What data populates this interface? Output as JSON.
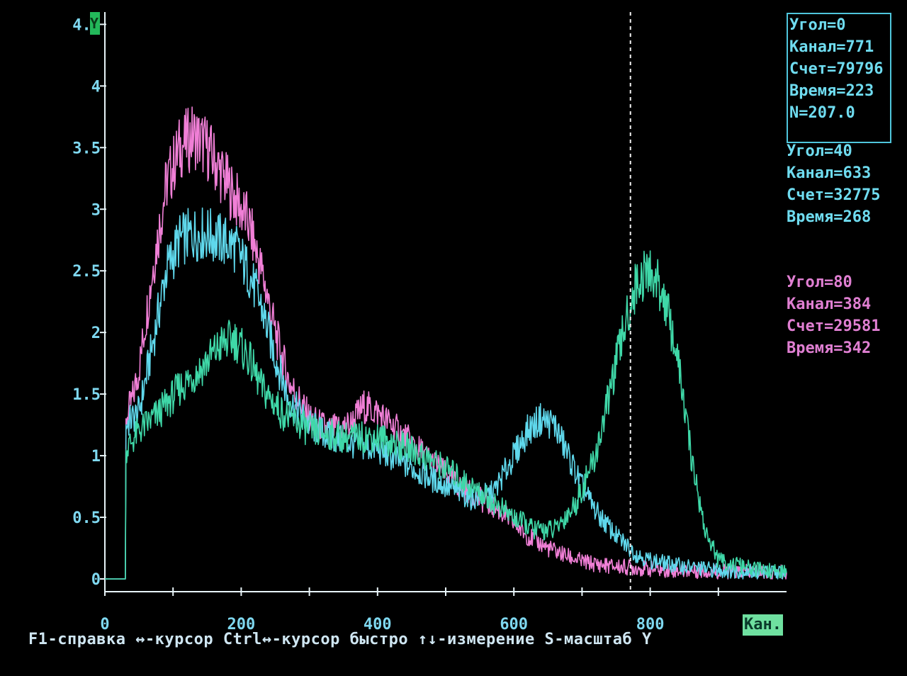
{
  "chart_data": {
    "type": "line",
    "title": "",
    "xlabel": "Кан.",
    "ylabel": "",
    "xlim": [
      0,
      1000
    ],
    "ylim": [
      0,
      4.6
    ],
    "x_ticks": [
      "0",
      "200",
      "400",
      "600",
      "800"
    ],
    "x_tick_values": [
      0,
      200,
      400,
      600,
      800
    ],
    "y_ticks": [
      "0",
      "0.5",
      "1",
      "1.5",
      "2",
      "2.5",
      "3",
      "3.5",
      "4",
      "4.5"
    ],
    "y_tick_values": [
      0,
      0.5,
      1,
      1.5,
      2,
      2.5,
      3,
      3.5,
      4,
      4.5
    ],
    "cursor_channel": 771,
    "grid": false,
    "series": [
      {
        "color": "#f07fd6",
        "x": [
          0,
          30,
          31,
          40,
          50,
          70,
          90,
          110,
          130,
          150,
          170,
          190,
          210,
          230,
          250,
          270,
          300,
          330,
          360,
          380,
          400,
          420,
          450,
          480,
          500,
          520,
          550,
          580,
          600,
          620,
          650,
          680,
          700,
          720,
          750,
          780,
          800,
          850,
          900,
          1000
        ],
        "y": [
          0,
          0,
          1.3,
          1.45,
          1.7,
          2.5,
          3.2,
          3.5,
          3.6,
          3.5,
          3.3,
          3.1,
          2.9,
          2.5,
          2.0,
          1.6,
          1.3,
          1.2,
          1.25,
          1.4,
          1.35,
          1.25,
          1.1,
          0.95,
          0.85,
          0.75,
          0.65,
          0.55,
          0.45,
          0.35,
          0.25,
          0.18,
          0.14,
          0.12,
          0.1,
          0.09,
          0.08,
          0.07,
          0.06,
          0.05
        ]
      },
      {
        "color": "#5fd8ec",
        "x": [
          0,
          30,
          31,
          40,
          50,
          70,
          90,
          110,
          130,
          150,
          170,
          190,
          210,
          230,
          250,
          270,
          300,
          330,
          360,
          400,
          450,
          500,
          540,
          570,
          600,
          620,
          640,
          660,
          680,
          700,
          720,
          750,
          780,
          800,
          850,
          900,
          1000
        ],
        "y": [
          0,
          0,
          1.25,
          1.3,
          1.35,
          1.9,
          2.5,
          2.75,
          2.8,
          2.8,
          2.75,
          2.7,
          2.5,
          2.2,
          1.8,
          1.45,
          1.25,
          1.15,
          1.1,
          1.05,
          0.9,
          0.75,
          0.65,
          0.7,
          1.0,
          1.2,
          1.3,
          1.25,
          1.0,
          0.75,
          0.55,
          0.35,
          0.2,
          0.15,
          0.1,
          0.07,
          0.05
        ]
      },
      {
        "color": "#3fd8a8",
        "x": [
          0,
          30,
          31,
          50,
          80,
          110,
          140,
          170,
          190,
          210,
          230,
          260,
          300,
          350,
          400,
          450,
          500,
          550,
          600,
          630,
          660,
          690,
          720,
          740,
          760,
          780,
          800,
          820,
          840,
          860,
          880,
          900,
          950,
          1000
        ],
        "y": [
          0,
          0,
          1.05,
          1.2,
          1.35,
          1.55,
          1.7,
          1.9,
          1.95,
          1.8,
          1.55,
          1.35,
          1.2,
          1.15,
          1.15,
          1.05,
          0.9,
          0.7,
          0.5,
          0.4,
          0.4,
          0.6,
          1.0,
          1.5,
          2.0,
          2.4,
          2.5,
          2.3,
          1.8,
          1.0,
          0.4,
          0.15,
          0.08,
          0.05
        ]
      }
    ]
  },
  "panels": [
    {
      "lines": [
        "Угол=0",
        "Канал=771",
        "Счет=79796",
        "Время=223",
        "N=207.0"
      ]
    },
    {
      "lines": [
        "Угол=40",
        "Канал=633",
        "Счет=32775",
        "Время=268"
      ]
    },
    {
      "lines": [
        "Угол=80",
        "Канал=384",
        "Счет=29581",
        "Время=342"
      ]
    }
  ],
  "footer": {
    "help_text": "F1-справка ↔-курсор Ctrl↔-курсор быстро ↑↓-измерение S-масштаб Y",
    "units_badge": "Кан."
  },
  "y_marker_label": "Y"
}
